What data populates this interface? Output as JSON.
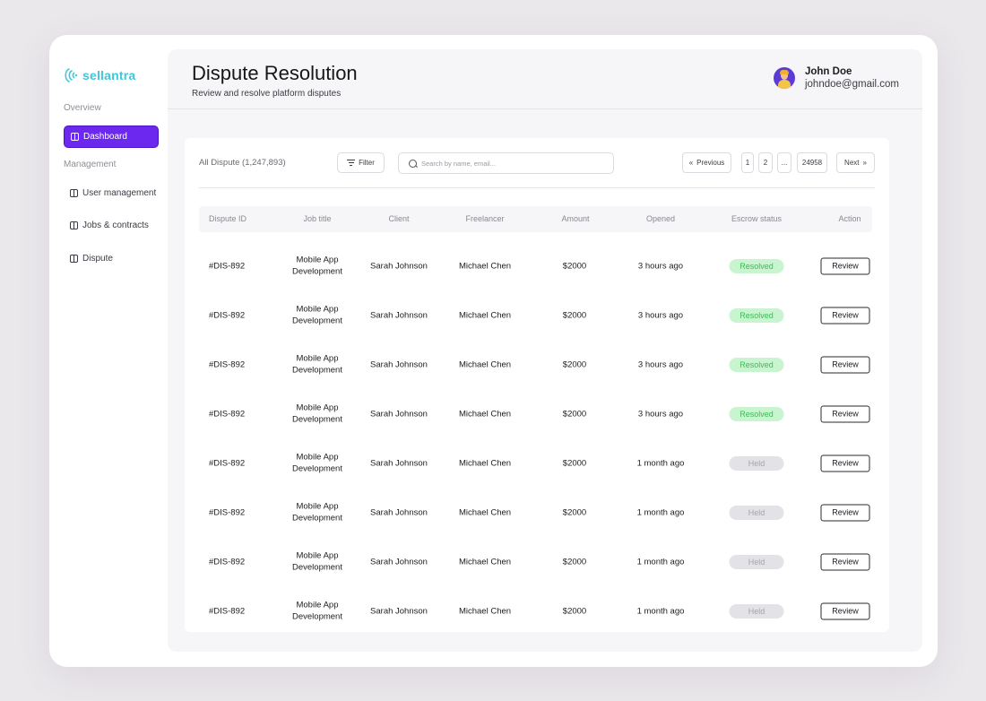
{
  "brand": {
    "name": "sellantra",
    "accent": "#3ec8da"
  },
  "sidebar": {
    "overview_label": "Overview",
    "management_label": "Management",
    "items": [
      {
        "label": "Dashboard",
        "active": true
      },
      {
        "label": "User management",
        "active": false
      },
      {
        "label": "Jobs & contracts",
        "active": false
      },
      {
        "label": "Dispute",
        "active": false
      }
    ]
  },
  "header": {
    "title": "Dispute Resolution",
    "subtitle": "Review and resolve platform disputes",
    "user": {
      "name": "John Doe",
      "email": "johndoe@gmail.com"
    }
  },
  "toolbar": {
    "count_label": "All Dispute (1,247,893)",
    "filter_label": "Filter",
    "search_placeholder": "Search by name, email...",
    "pagination": {
      "previous": "Previous",
      "pages": [
        "1",
        "2",
        "...",
        "24958"
      ],
      "next": "Next"
    }
  },
  "table": {
    "columns": [
      "Dispute ID",
      "Job title",
      "Client",
      "Freelancer",
      "Amount",
      "Opened",
      "Escrow status",
      "Action"
    ],
    "rows": [
      {
        "id": "#DIS-892",
        "job_line1": "Mobile App",
        "job_line2": "Development",
        "client": "Sarah Johnson",
        "freelancer": "Michael Chen",
        "amount": "$2000",
        "opened": "3 hours ago",
        "status": "Resolved",
        "action": "Review"
      },
      {
        "id": "#DIS-892",
        "job_line1": "Mobile App",
        "job_line2": "Development",
        "client": "Sarah Johnson",
        "freelancer": "Michael Chen",
        "amount": "$2000",
        "opened": "3 hours ago",
        "status": "Resolved",
        "action": "Review"
      },
      {
        "id": "#DIS-892",
        "job_line1": "Mobile App",
        "job_line2": "Development",
        "client": "Sarah Johnson",
        "freelancer": "Michael Chen",
        "amount": "$2000",
        "opened": "3 hours ago",
        "status": "Resolved",
        "action": "Review"
      },
      {
        "id": "#DIS-892",
        "job_line1": "Mobile App",
        "job_line2": "Development",
        "client": "Sarah Johnson",
        "freelancer": "Michael Chen",
        "amount": "$2000",
        "opened": "3 hours ago",
        "status": "Resolved",
        "action": "Review"
      },
      {
        "id": "#DIS-892",
        "job_line1": "Mobile App",
        "job_line2": "Development",
        "client": "Sarah Johnson",
        "freelancer": "Michael Chen",
        "amount": "$2000",
        "opened": "1 month ago",
        "status": "Held",
        "action": "Review"
      },
      {
        "id": "#DIS-892",
        "job_line1": "Mobile App",
        "job_line2": "Development",
        "client": "Sarah Johnson",
        "freelancer": "Michael Chen",
        "amount": "$2000",
        "opened": "1 month ago",
        "status": "Held",
        "action": "Review"
      },
      {
        "id": "#DIS-892",
        "job_line1": "Mobile App",
        "job_line2": "Development",
        "client": "Sarah Johnson",
        "freelancer": "Michael Chen",
        "amount": "$2000",
        "opened": "1 month ago",
        "status": "Held",
        "action": "Review"
      },
      {
        "id": "#DIS-892",
        "job_line1": "Mobile App",
        "job_line2": "Development",
        "client": "Sarah Johnson",
        "freelancer": "Michael Chen",
        "amount": "$2000",
        "opened": "1 month ago",
        "status": "Held",
        "action": "Review"
      }
    ]
  },
  "colors": {
    "primary": "#6d28f0",
    "resolved_bg": "#c9f4d0",
    "resolved_text": "#3cbc55",
    "held_bg": "#e3e2e6",
    "held_text": "#a5a4aa"
  }
}
